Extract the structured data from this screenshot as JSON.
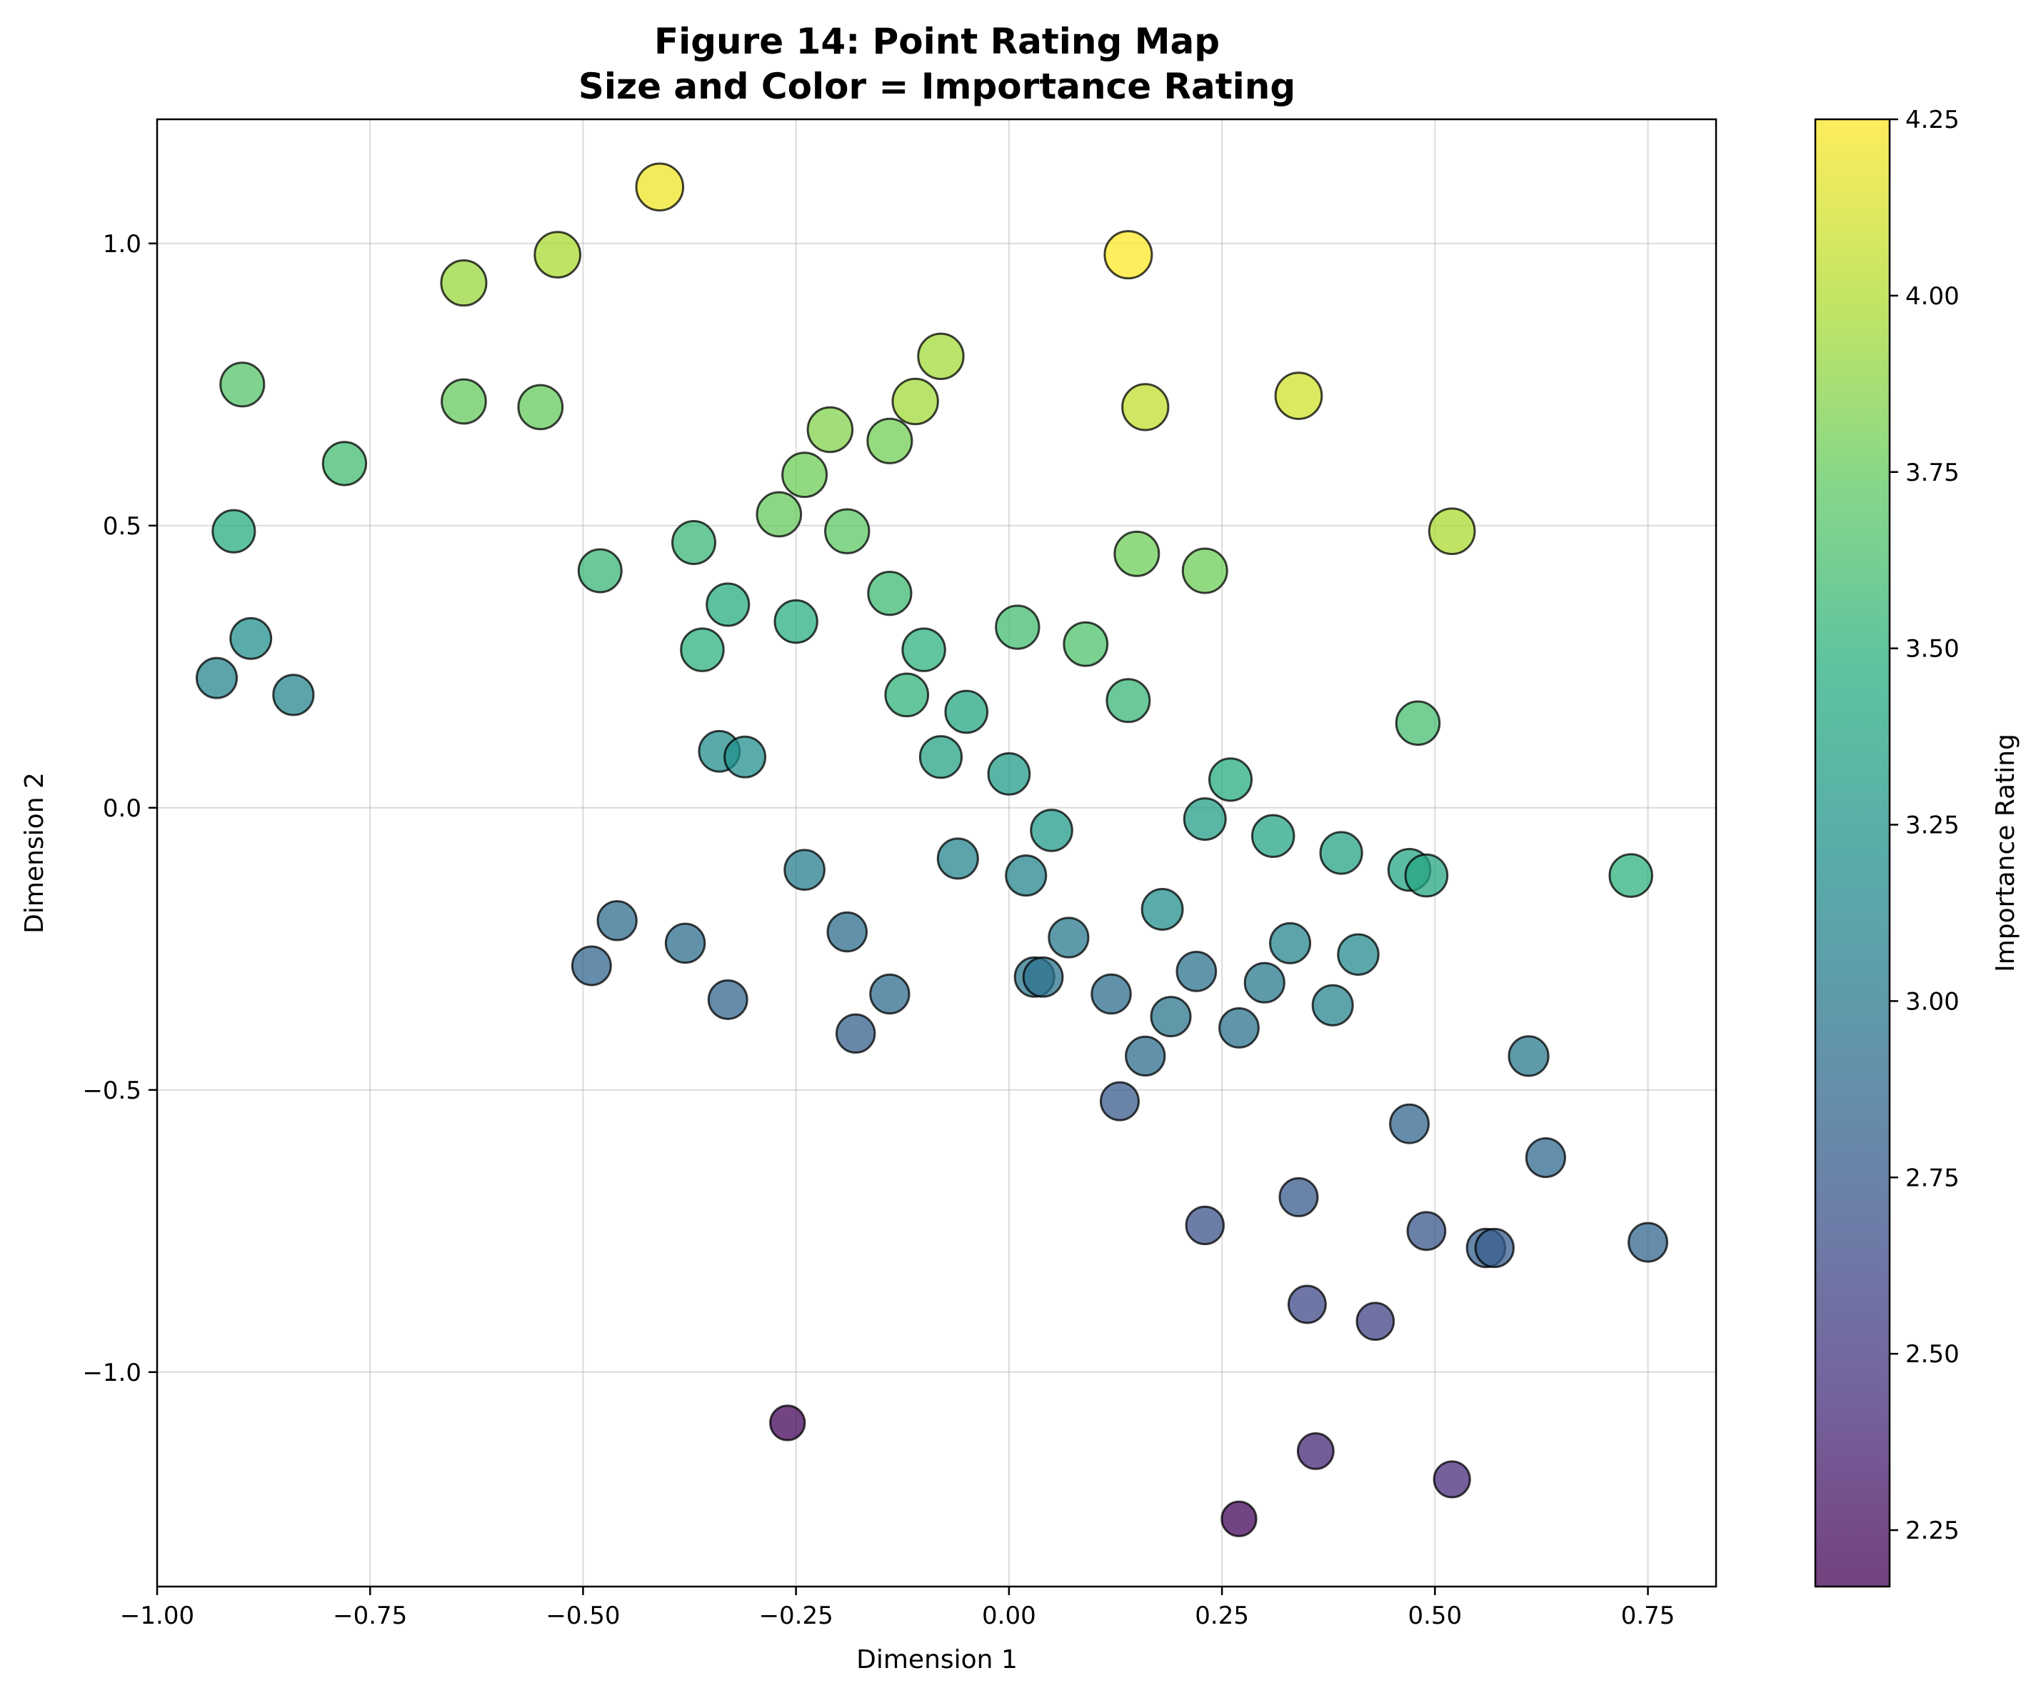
{
  "chart_data": {
    "type": "scatter",
    "title": "Figure 14: Point Rating Map",
    "subtitle": "Size and Color = Importance Rating",
    "xlabel": "Dimension 1",
    "ylabel": "Dimension 2",
    "xlim": [
      -1.0,
      0.83
    ],
    "ylim": [
      -1.38,
      1.22
    ],
    "xticks": [
      -1.0,
      -0.75,
      -0.5,
      -0.25,
      0.0,
      0.25,
      0.5,
      0.75
    ],
    "xtick_labels": [
      "−1.00",
      "−0.75",
      "−0.50",
      "−0.25",
      "0.00",
      "0.25",
      "0.50",
      "0.75"
    ],
    "yticks": [
      -1.0,
      -0.5,
      0.0,
      0.5,
      1.0
    ],
    "ytick_labels": [
      "−1.0",
      "−0.5",
      "0.0",
      "0.5",
      "1.0"
    ],
    "grid": true,
    "colorbar": {
      "label": "Importance Rating",
      "range": [
        2.17,
        4.25
      ],
      "ticks": [
        2.25,
        2.5,
        2.75,
        3.0,
        3.25,
        3.5,
        3.75,
        4.0,
        4.25
      ],
      "tick_labels": [
        "2.25",
        "2.50",
        "2.75",
        "3.00",
        "3.25",
        "3.50",
        "3.75",
        "4.00",
        "4.25"
      ],
      "colormap": "viridis"
    },
    "points": [
      {
        "x": -0.41,
        "y": 1.1,
        "rating": 4.2
      },
      {
        "x": 0.14,
        "y": 0.98,
        "rating": 4.25
      },
      {
        "x": -0.53,
        "y": 0.98,
        "rating": 3.98
      },
      {
        "x": -0.64,
        "y": 0.93,
        "rating": 3.92
      },
      {
        "x": -0.08,
        "y": 0.8,
        "rating": 3.95
      },
      {
        "x": -0.9,
        "y": 0.75,
        "rating": 3.68
      },
      {
        "x": -0.64,
        "y": 0.72,
        "rating": 3.75
      },
      {
        "x": -0.55,
        "y": 0.71,
        "rating": 3.75
      },
      {
        "x": -0.11,
        "y": 0.72,
        "rating": 3.95
      },
      {
        "x": 0.16,
        "y": 0.71,
        "rating": 4.05
      },
      {
        "x": 0.34,
        "y": 0.73,
        "rating": 4.1
      },
      {
        "x": -0.21,
        "y": 0.67,
        "rating": 3.85
      },
      {
        "x": -0.14,
        "y": 0.65,
        "rating": 3.8
      },
      {
        "x": -0.78,
        "y": 0.61,
        "rating": 3.6
      },
      {
        "x": -0.24,
        "y": 0.59,
        "rating": 3.78
      },
      {
        "x": -0.27,
        "y": 0.52,
        "rating": 3.75
      },
      {
        "x": -0.91,
        "y": 0.49,
        "rating": 3.45
      },
      {
        "x": -0.37,
        "y": 0.47,
        "rating": 3.55
      },
      {
        "x": -0.19,
        "y": 0.49,
        "rating": 3.72
      },
      {
        "x": 0.52,
        "y": 0.49,
        "rating": 3.98
      },
      {
        "x": -0.48,
        "y": 0.42,
        "rating": 3.55
      },
      {
        "x": 0.15,
        "y": 0.45,
        "rating": 3.78
      },
      {
        "x": 0.23,
        "y": 0.42,
        "rating": 3.78
      },
      {
        "x": -0.14,
        "y": 0.38,
        "rating": 3.58
      },
      {
        "x": -0.33,
        "y": 0.36,
        "rating": 3.45
      },
      {
        "x": -0.25,
        "y": 0.33,
        "rating": 3.48
      },
      {
        "x": 0.01,
        "y": 0.32,
        "rating": 3.6
      },
      {
        "x": 0.09,
        "y": 0.29,
        "rating": 3.65
      },
      {
        "x": -0.89,
        "y": 0.3,
        "rating": 3.2
      },
      {
        "x": -0.36,
        "y": 0.28,
        "rating": 3.5
      },
      {
        "x": -0.1,
        "y": 0.28,
        "rating": 3.5
      },
      {
        "x": -0.93,
        "y": 0.23,
        "rating": 3.1
      },
      {
        "x": -0.84,
        "y": 0.2,
        "rating": 3.12
      },
      {
        "x": -0.12,
        "y": 0.2,
        "rating": 3.52
      },
      {
        "x": 0.14,
        "y": 0.19,
        "rating": 3.55
      },
      {
        "x": -0.05,
        "y": 0.17,
        "rating": 3.4
      },
      {
        "x": 0.48,
        "y": 0.15,
        "rating": 3.62
      },
      {
        "x": -0.34,
        "y": 0.1,
        "rating": 3.18
      },
      {
        "x": -0.31,
        "y": 0.09,
        "rating": 3.2
      },
      {
        "x": -0.08,
        "y": 0.09,
        "rating": 3.35
      },
      {
        "x": 0.0,
        "y": 0.06,
        "rating": 3.3
      },
      {
        "x": 0.26,
        "y": 0.05,
        "rating": 3.45
      },
      {
        "x": 0.23,
        "y": -0.02,
        "rating": 3.32
      },
      {
        "x": 0.05,
        "y": -0.04,
        "rating": 3.28
      },
      {
        "x": 0.31,
        "y": -0.05,
        "rating": 3.38
      },
      {
        "x": 0.39,
        "y": -0.08,
        "rating": 3.35
      },
      {
        "x": -0.24,
        "y": -0.11,
        "rating": 3.05
      },
      {
        "x": -0.06,
        "y": -0.09,
        "rating": 3.1
      },
      {
        "x": 0.02,
        "y": -0.12,
        "rating": 3.1
      },
      {
        "x": 0.47,
        "y": -0.11,
        "rating": 3.38
      },
      {
        "x": 0.49,
        "y": -0.12,
        "rating": 3.4
      },
      {
        "x": 0.73,
        "y": -0.12,
        "rating": 3.5
      },
      {
        "x": 0.18,
        "y": -0.18,
        "rating": 3.2
      },
      {
        "x": -0.46,
        "y": -0.2,
        "rating": 2.9
      },
      {
        "x": -0.38,
        "y": -0.24,
        "rating": 2.92
      },
      {
        "x": -0.19,
        "y": -0.22,
        "rating": 2.92
      },
      {
        "x": 0.07,
        "y": -0.23,
        "rating": 3.0
      },
      {
        "x": 0.33,
        "y": -0.24,
        "rating": 3.1
      },
      {
        "x": -0.49,
        "y": -0.28,
        "rating": 2.85
      },
      {
        "x": 0.03,
        "y": -0.3,
        "rating": 2.98
      },
      {
        "x": 0.04,
        "y": -0.3,
        "rating": 2.95
      },
      {
        "x": 0.22,
        "y": -0.29,
        "rating": 2.95
      },
      {
        "x": 0.41,
        "y": -0.26,
        "rating": 3.15
      },
      {
        "x": -0.33,
        "y": -0.34,
        "rating": 2.85
      },
      {
        "x": -0.14,
        "y": -0.33,
        "rating": 2.9
      },
      {
        "x": 0.12,
        "y": -0.33,
        "rating": 2.92
      },
      {
        "x": 0.3,
        "y": -0.31,
        "rating": 3.0
      },
      {
        "x": 0.38,
        "y": -0.35,
        "rating": 3.1
      },
      {
        "x": 0.19,
        "y": -0.37,
        "rating": 2.98
      },
      {
        "x": -0.18,
        "y": -0.4,
        "rating": 2.8
      },
      {
        "x": 0.27,
        "y": -0.39,
        "rating": 2.95
      },
      {
        "x": 0.16,
        "y": -0.44,
        "rating": 2.9
      },
      {
        "x": 0.61,
        "y": -0.44,
        "rating": 3.0
      },
      {
        "x": 0.13,
        "y": -0.52,
        "rating": 2.75
      },
      {
        "x": 0.47,
        "y": -0.56,
        "rating": 2.85
      },
      {
        "x": 0.63,
        "y": -0.62,
        "rating": 2.88
      },
      {
        "x": 0.34,
        "y": -0.69,
        "rating": 2.75
      },
      {
        "x": 0.23,
        "y": -0.74,
        "rating": 2.68
      },
      {
        "x": 0.49,
        "y": -0.75,
        "rating": 2.72
      },
      {
        "x": 0.56,
        "y": -0.78,
        "rating": 2.8
      },
      {
        "x": 0.57,
        "y": -0.78,
        "rating": 2.78
      },
      {
        "x": 0.75,
        "y": -0.77,
        "rating": 2.85
      },
      {
        "x": 0.35,
        "y": -0.88,
        "rating": 2.62
      },
      {
        "x": 0.43,
        "y": -0.91,
        "rating": 2.58
      },
      {
        "x": -0.26,
        "y": -1.09,
        "rating": 2.2
      },
      {
        "x": 0.36,
        "y": -1.14,
        "rating": 2.38
      },
      {
        "x": 0.52,
        "y": -1.19,
        "rating": 2.42
      },
      {
        "x": 0.27,
        "y": -1.26,
        "rating": 2.2
      }
    ]
  }
}
